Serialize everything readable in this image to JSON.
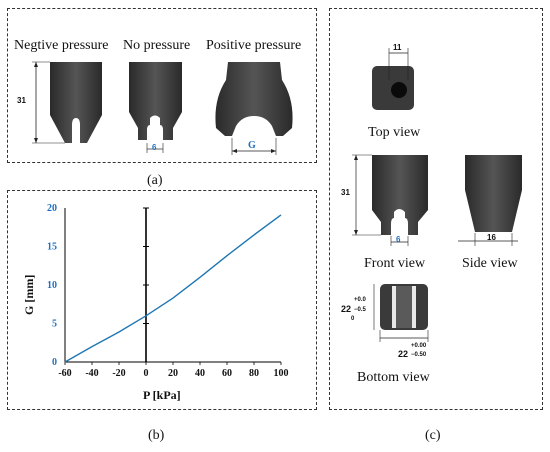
{
  "panel_a": {
    "states": [
      "Negtive pressure",
      "No pressure",
      "Positive pressure"
    ],
    "height_dim": "31",
    "gap_dim_no_pressure": "6",
    "gap_dim_positive": "G",
    "caption": "(a)"
  },
  "panel_b": {
    "caption": "(b)"
  },
  "panel_c": {
    "top_dim": "11",
    "top_view": "Top view",
    "front_height": "31",
    "front_gap": "6",
    "front_view": "Front view",
    "side_width": "16",
    "side_view": "Side view",
    "bottom_main_1": "22",
    "bottom_tol_1_up": "+0.0",
    "bottom_tol_1_down": "−0.5",
    "bottom_tol_1_extra": "0",
    "bottom_main_2": "22",
    "bottom_tol_2_up": "+0.00",
    "bottom_tol_2_down": "−0.50",
    "bottom_view": "Bottom view",
    "caption": "(c)"
  },
  "chart_data": {
    "type": "line",
    "xlabel": "P [kPa]",
    "ylabel": "G [mm]",
    "xlim": [
      -60,
      100
    ],
    "ylim": [
      0,
      20
    ],
    "xticks": [
      -60,
      -40,
      -20,
      0,
      20,
      40,
      60,
      80,
      100
    ],
    "yticks": [
      0,
      5,
      10,
      15,
      20
    ],
    "grid": false,
    "series": [
      {
        "color": "#1f77b4",
        "x": [
          -60,
          -40,
          -20,
          0,
          20,
          40,
          60,
          80,
          100
        ],
        "y": [
          0.0,
          2.0,
          3.9,
          6.0,
          8.3,
          11.0,
          13.8,
          16.5,
          19.1
        ]
      }
    ]
  }
}
